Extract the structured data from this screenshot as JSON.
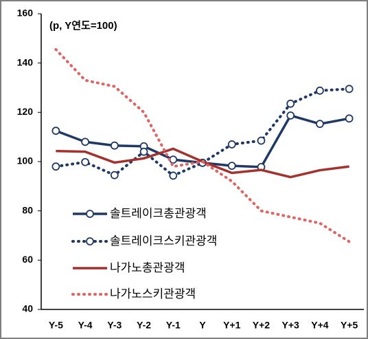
{
  "chart_data": {
    "type": "line",
    "annotation": "(p, Y연도=100)",
    "categories": [
      "Y-5",
      "Y-4",
      "Y-3",
      "Y-2",
      "Y-1",
      "Y",
      "Y+1",
      "Y+2",
      "Y+3",
      "Y+4",
      "Y+5"
    ],
    "series": [
      {
        "name": "솔트레이크총관광객",
        "color": "#1f3864",
        "style": "solid",
        "marker": "circle",
        "values": [
          112.5,
          108,
          106.5,
          106.2,
          100.8,
          99.5,
          98.3,
          97.8,
          118.7,
          115.3,
          117.5
        ]
      },
      {
        "name": "솔트레이크스키관광객",
        "color": "#1f3864",
        "style": "dotted",
        "marker": "circle",
        "values": [
          98,
          99.8,
          94.5,
          104,
          94.3,
          99.5,
          107,
          108.5,
          123.5,
          128.8,
          129.5
        ]
      },
      {
        "name": "나가노총관광객",
        "color": "#a5302d",
        "style": "solid",
        "marker": "none",
        "values": [
          104.3,
          104,
          99.6,
          101.3,
          105.2,
          100,
          95.4,
          96.6,
          93.7,
          96.5,
          98
        ]
      },
      {
        "name": "나가노스키관광객",
        "color": "#e06464",
        "style": "dotted",
        "marker": "none",
        "values": [
          145.5,
          133,
          130.5,
          120,
          98,
          100,
          92,
          80,
          77.5,
          75,
          67.5
        ]
      }
    ],
    "ylim": [
      40,
      160
    ],
    "yticks": [
      40,
      60,
      80,
      100,
      120,
      140,
      160
    ],
    "grid": false
  }
}
